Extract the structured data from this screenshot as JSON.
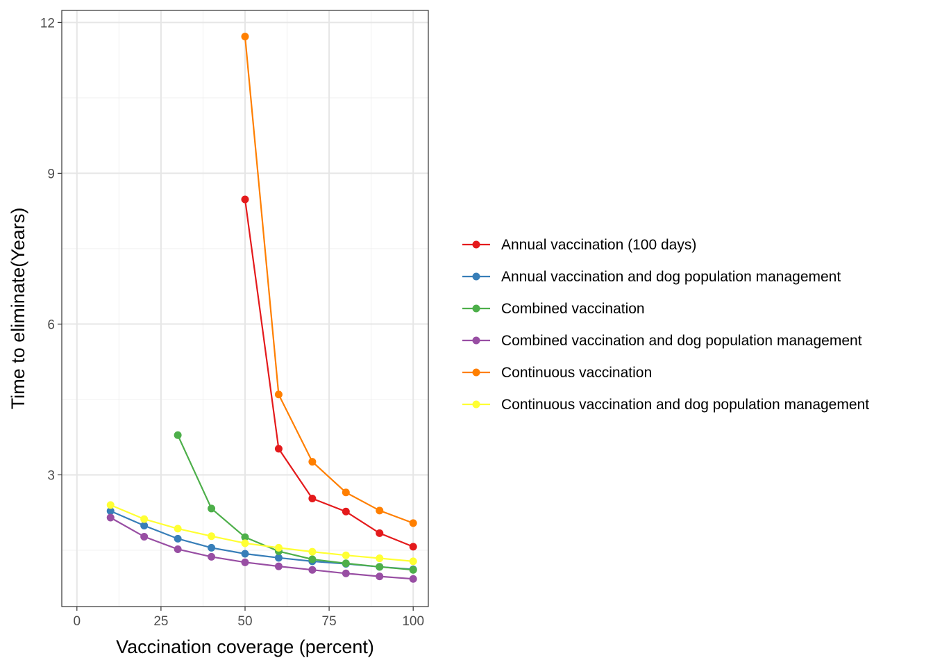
{
  "chart_data": {
    "type": "line",
    "title": "",
    "xlabel": "Vaccination coverage (percent)",
    "ylabel": "Time to eliminate(Years)",
    "xlim": [
      0,
      100
    ],
    "ylim": [
      0,
      12
    ],
    "x_ticks": [
      0,
      25,
      50,
      75,
      100
    ],
    "x_tick_labels": [
      "0",
      "25",
      "50",
      "75",
      "100"
    ],
    "y_ticks": [
      3,
      6,
      9,
      12
    ],
    "y_tick_labels": [
      "3",
      "6",
      "9",
      "12"
    ],
    "grid": true,
    "legend_position": "right",
    "series": [
      {
        "name": "Annual vaccination (100 days)",
        "color": "#e41a1c",
        "x": [
          50,
          60,
          70,
          80,
          90,
          100
        ],
        "y": [
          8.48,
          3.52,
          2.53,
          2.27,
          1.84,
          1.57
        ]
      },
      {
        "name": "Annual vaccination and dog population management",
        "color": "#377eb8",
        "x": [
          10,
          20,
          30,
          40,
          50,
          60,
          70,
          80,
          90,
          100
        ],
        "y": [
          2.28,
          1.99,
          1.73,
          1.55,
          1.43,
          1.35,
          1.28,
          1.23,
          1.17,
          1.12
        ]
      },
      {
        "name": "Combined vaccination",
        "color": "#4daf4a",
        "x": [
          30,
          40,
          50,
          60,
          70,
          80,
          90,
          100
        ],
        "y": [
          3.79,
          2.33,
          1.76,
          1.48,
          1.32,
          1.24,
          1.17,
          1.11
        ]
      },
      {
        "name": "Combined vaccination and dog population management",
        "color": "#984ea3",
        "x": [
          10,
          20,
          30,
          40,
          50,
          60,
          70,
          80,
          90,
          100
        ],
        "y": [
          2.15,
          1.77,
          1.52,
          1.37,
          1.26,
          1.18,
          1.11,
          1.04,
          0.98,
          0.93
        ]
      },
      {
        "name": "Continuous vaccination",
        "color": "#ff7f00",
        "x": [
          50,
          60,
          70,
          80,
          90,
          100
        ],
        "y": [
          11.72,
          4.6,
          3.26,
          2.65,
          2.29,
          2.04
        ]
      },
      {
        "name": "Continuous vaccination and dog population management",
        "color": "#ffff33",
        "x": [
          10,
          20,
          30,
          40,
          50,
          60,
          70,
          80,
          90,
          100
        ],
        "y": [
          2.4,
          2.12,
          1.93,
          1.78,
          1.64,
          1.55,
          1.47,
          1.4,
          1.34,
          1.28
        ]
      }
    ]
  }
}
